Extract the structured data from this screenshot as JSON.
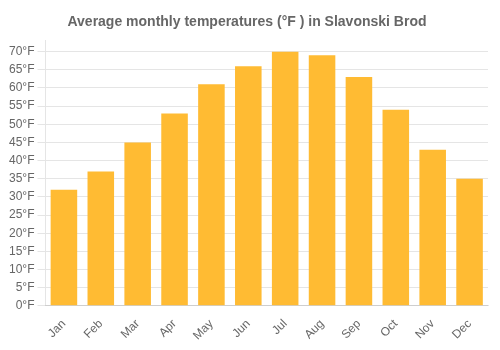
{
  "chart_data": {
    "type": "bar",
    "title": "Average monthly temperatures (°F ) in Slavonski Brod",
    "categories": [
      "Jan",
      "Feb",
      "Mar",
      "Apr",
      "May",
      "Jun",
      "Jul",
      "Aug",
      "Sep",
      "Oct",
      "Nov",
      "Dec"
    ],
    "values": [
      32,
      37,
      45,
      53,
      61,
      66,
      70,
      69,
      63,
      54,
      43,
      35
    ],
    "color": "#FFBB33",
    "ylim": [
      0,
      73
    ],
    "yticks": [
      {
        "value": 0,
        "label": "0°F"
      },
      {
        "value": 5,
        "label": "5°F"
      },
      {
        "value": 10,
        "label": "10°F"
      },
      {
        "value": 15,
        "label": "15°F"
      },
      {
        "value": 20,
        "label": "20°F"
      },
      {
        "value": 25,
        "label": "25°F"
      },
      {
        "value": 30,
        "label": "30°F"
      },
      {
        "value": 35,
        "label": "35°F"
      },
      {
        "value": 40,
        "label": "40°F"
      },
      {
        "value": 45,
        "label": "45°F"
      },
      {
        "value": 50,
        "label": "50°F"
      },
      {
        "value": 55,
        "label": "55°F"
      },
      {
        "value": 60,
        "label": "60°F"
      },
      {
        "value": 65,
        "label": "65°F"
      },
      {
        "value": 70,
        "label": "70°F"
      }
    ],
    "grid": true
  }
}
